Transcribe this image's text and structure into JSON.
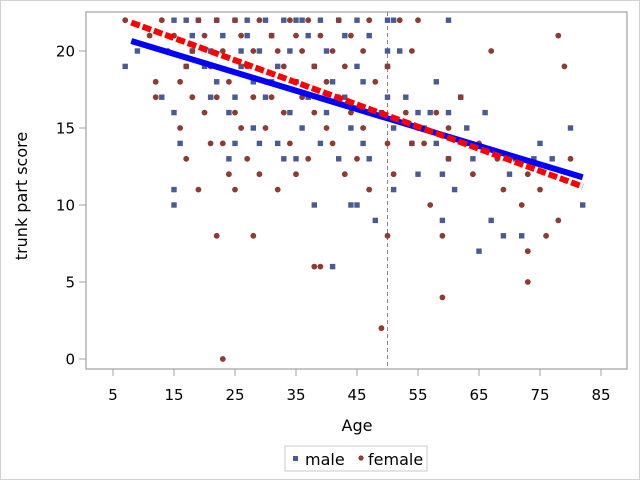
{
  "chart_data": {
    "type": "scatter",
    "title": "",
    "xlabel": "Age",
    "ylabel": "trunk part score",
    "xlim": [
      0,
      90
    ],
    "ylim": [
      -0.6,
      22.6
    ],
    "xticks": [
      5,
      15,
      25,
      35,
      45,
      55,
      65,
      75,
      85
    ],
    "yticks": [
      0,
      5,
      10,
      15,
      20
    ],
    "reference_line_x": 50,
    "grid": false,
    "legend": {
      "placement": "bottom-center",
      "entries": [
        {
          "label": "male",
          "marker": "square",
          "color": "#4a5a94"
        },
        {
          "label": "female",
          "marker": "circle",
          "color": "#8f3a32"
        }
      ]
    },
    "series": [
      {
        "name": "male",
        "marker": "square",
        "color": "#4a5a94",
        "points": [
          [
            7,
            19
          ],
          [
            9,
            20
          ],
          [
            13,
            17
          ],
          [
            15,
            22
          ],
          [
            15,
            16
          ],
          [
            15,
            11
          ],
          [
            15,
            10
          ],
          [
            16,
            14
          ],
          [
            17,
            22
          ],
          [
            17,
            19
          ],
          [
            18,
            21
          ],
          [
            18,
            20
          ],
          [
            19,
            22
          ],
          [
            20,
            19
          ],
          [
            21,
            17
          ],
          [
            21,
            20
          ],
          [
            22,
            22
          ],
          [
            22,
            18
          ],
          [
            23,
            21
          ],
          [
            24,
            16
          ],
          [
            24,
            13
          ],
          [
            25,
            22
          ],
          [
            25,
            17
          ],
          [
            25,
            14
          ],
          [
            26,
            20
          ],
          [
            26,
            19
          ],
          [
            27,
            22
          ],
          [
            27,
            21
          ],
          [
            28,
            18
          ],
          [
            28,
            15
          ],
          [
            29,
            20
          ],
          [
            29,
            14
          ],
          [
            30,
            22
          ],
          [
            30,
            17
          ],
          [
            31,
            21
          ],
          [
            31,
            18
          ],
          [
            32,
            19
          ],
          [
            32,
            14
          ],
          [
            33,
            22
          ],
          [
            33,
            13
          ],
          [
            34,
            20
          ],
          [
            34,
            16
          ],
          [
            35,
            22
          ],
          [
            35,
            18
          ],
          [
            35,
            13
          ],
          [
            36,
            22
          ],
          [
            36,
            15
          ],
          [
            37,
            21
          ],
          [
            37,
            17
          ],
          [
            38,
            10
          ],
          [
            38,
            19
          ],
          [
            39,
            22
          ],
          [
            39,
            14
          ],
          [
            40,
            20
          ],
          [
            40,
            16
          ],
          [
            41,
            6
          ],
          [
            41,
            18
          ],
          [
            42,
            22
          ],
          [
            42,
            13
          ],
          [
            43,
            21
          ],
          [
            43,
            17
          ],
          [
            44,
            15
          ],
          [
            44,
            10
          ],
          [
            45,
            22
          ],
          [
            45,
            19
          ],
          [
            45,
            10
          ],
          [
            46,
            18
          ],
          [
            46,
            14
          ],
          [
            47,
            21
          ],
          [
            47,
            13
          ],
          [
            48,
            9
          ],
          [
            49,
            16
          ],
          [
            50,
            20
          ],
          [
            50,
            19
          ],
          [
            50,
            22
          ],
          [
            50,
            17
          ],
          [
            51,
            22
          ],
          [
            51,
            15
          ],
          [
            51,
            11
          ],
          [
            52,
            20
          ],
          [
            53,
            17
          ],
          [
            54,
            14
          ],
          [
            55,
            16
          ],
          [
            55,
            12
          ],
          [
            56,
            15
          ],
          [
            57,
            16
          ],
          [
            58,
            18
          ],
          [
            58,
            14
          ],
          [
            59,
            12
          ],
          [
            59,
            9
          ],
          [
            60,
            22
          ],
          [
            60,
            16
          ],
          [
            60,
            13
          ],
          [
            61,
            11
          ],
          [
            62,
            17
          ],
          [
            63,
            15
          ],
          [
            64,
            13
          ],
          [
            65,
            7
          ],
          [
            66,
            16
          ],
          [
            67,
            9
          ],
          [
            69,
            8
          ],
          [
            70,
            12
          ],
          [
            71,
            13
          ],
          [
            72,
            8
          ],
          [
            74,
            13
          ],
          [
            75,
            14
          ],
          [
            77,
            13
          ],
          [
            80,
            15
          ],
          [
            82,
            10
          ]
        ]
      },
      {
        "name": "female",
        "marker": "circle",
        "color": "#8f3a32",
        "points": [
          [
            7,
            22
          ],
          [
            11,
            21
          ],
          [
            12,
            18
          ],
          [
            12,
            17
          ],
          [
            13,
            22
          ],
          [
            14,
            20
          ],
          [
            15,
            21
          ],
          [
            16,
            18
          ],
          [
            16,
            15
          ],
          [
            17,
            19
          ],
          [
            17,
            13
          ],
          [
            18,
            20
          ],
          [
            18,
            17
          ],
          [
            19,
            11
          ],
          [
            19,
            22
          ],
          [
            20,
            21
          ],
          [
            20,
            16
          ],
          [
            21,
            19
          ],
          [
            21,
            14
          ],
          [
            22,
            8
          ],
          [
            22,
            17
          ],
          [
            22,
            22
          ],
          [
            23,
            0
          ],
          [
            23,
            20
          ],
          [
            23,
            14
          ],
          [
            24,
            18
          ],
          [
            24,
            12
          ],
          [
            25,
            22
          ],
          [
            25,
            16
          ],
          [
            25,
            11
          ],
          [
            26,
            21
          ],
          [
            26,
            15
          ],
          [
            27,
            19
          ],
          [
            27,
            13
          ],
          [
            28,
            8
          ],
          [
            28,
            20
          ],
          [
            28,
            17
          ],
          [
            29,
            22
          ],
          [
            29,
            12
          ],
          [
            30,
            18
          ],
          [
            30,
            15
          ],
          [
            31,
            21
          ],
          [
            31,
            17
          ],
          [
            32,
            20
          ],
          [
            32,
            11
          ],
          [
            33,
            19
          ],
          [
            33,
            16
          ],
          [
            34,
            22
          ],
          [
            34,
            14
          ],
          [
            35,
            21
          ],
          [
            35,
            18
          ],
          [
            35,
            12
          ],
          [
            36,
            17
          ],
          [
            36,
            20
          ],
          [
            37,
            22
          ],
          [
            37,
            13
          ],
          [
            38,
            6
          ],
          [
            38,
            19
          ],
          [
            38,
            16
          ],
          [
            39,
            6
          ],
          [
            39,
            21
          ],
          [
            40,
            18
          ],
          [
            40,
            15
          ],
          [
            41,
            20
          ],
          [
            41,
            14
          ],
          [
            42,
            22
          ],
          [
            42,
            17
          ],
          [
            43,
            19
          ],
          [
            43,
            12
          ],
          [
            44,
            21
          ],
          [
            44,
            16
          ],
          [
            45,
            13
          ],
          [
            46,
            20
          ],
          [
            46,
            15
          ],
          [
            47,
            22
          ],
          [
            47,
            11
          ],
          [
            48,
            18
          ],
          [
            49,
            2
          ],
          [
            50,
            8
          ],
          [
            50,
            14
          ],
          [
            50,
            19
          ],
          [
            51,
            12
          ],
          [
            52,
            22
          ],
          [
            53,
            16
          ],
          [
            54,
            20
          ],
          [
            54,
            14
          ],
          [
            55,
            15
          ],
          [
            55,
            22
          ],
          [
            56,
            14
          ],
          [
            57,
            10
          ],
          [
            58,
            16
          ],
          [
            59,
            8
          ],
          [
            59,
            4
          ],
          [
            60,
            13
          ],
          [
            60,
            15
          ],
          [
            62,
            17
          ],
          [
            63,
            14
          ],
          [
            64,
            12
          ],
          [
            65,
            14
          ],
          [
            67,
            20
          ],
          [
            68,
            13
          ],
          [
            69,
            11
          ],
          [
            72,
            10
          ],
          [
            73,
            7
          ],
          [
            73,
            5
          ],
          [
            73,
            12
          ],
          [
            75,
            11
          ],
          [
            76,
            8
          ],
          [
            78,
            21
          ],
          [
            78,
            9
          ],
          [
            79,
            19
          ],
          [
            80,
            13
          ]
        ]
      }
    ],
    "fit_lines": [
      {
        "name": "male fit",
        "color": "#0000ff",
        "style": "solid",
        "x": [
          8,
          82
        ],
        "y": [
          20.65,
          11.8
        ]
      },
      {
        "name": "female fit",
        "color": "#ff0000",
        "style": "dashed",
        "x": [
          8,
          82
        ],
        "y": [
          21.85,
          11.2
        ]
      }
    ]
  }
}
